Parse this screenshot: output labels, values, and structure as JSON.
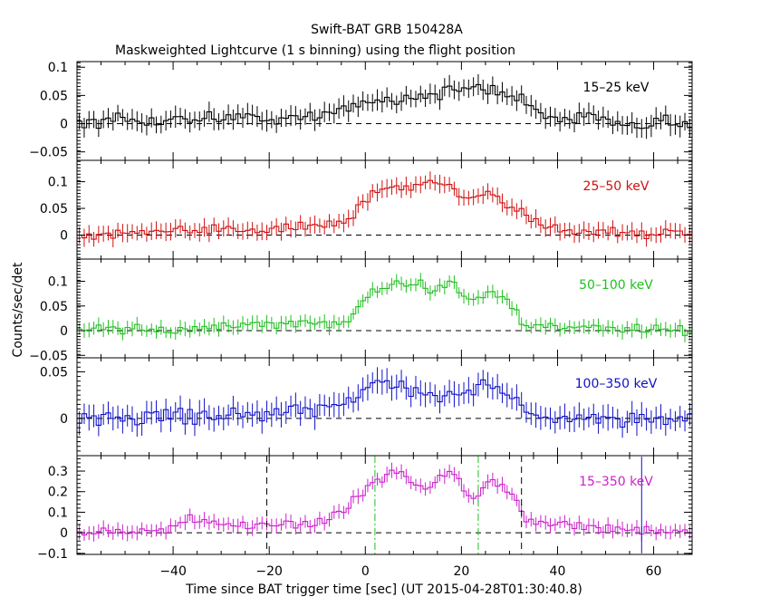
{
  "title": "Swift-BAT GRB 150428A",
  "subtitle": "Maskweighted Lightcurve (1 s binning) using the flight position",
  "ylabel": "Counts/sec/det",
  "xlabel": "Time since BAT trigger time [sec] (UT 2015-04-28T01:30:40.8)",
  "chart_data": {
    "type": "line",
    "xlim": [
      -60,
      68
    ],
    "x_ticks": [
      -40,
      -20,
      0,
      20,
      40,
      60
    ],
    "x_tick_labels": [
      "−40",
      "−20",
      "0",
      "20",
      "40",
      "60"
    ],
    "panels": [
      {
        "name": "15–25 keV",
        "color": "#000000",
        "ylim": [
          -0.065,
          0.11
        ],
        "y_ticks": [
          -0.05,
          0,
          0.05,
          0.1
        ],
        "y_tick_labels": [
          "−0.05",
          "0",
          "0.05",
          "0.1"
        ],
        "step": 0.006,
        "noise": 0.018,
        "shape": [
          [
            -60,
            0
          ],
          [
            -38,
            0.008
          ],
          [
            -28,
            0.012
          ],
          [
            -10,
            0.008
          ],
          [
            -6,
            0.025
          ],
          [
            0,
            0.04
          ],
          [
            10,
            0.045
          ],
          [
            18,
            0.06
          ],
          [
            27,
            0.06
          ],
          [
            34,
            0.035
          ],
          [
            40,
            0.01
          ],
          [
            68,
            0
          ]
        ]
      },
      {
        "name": "25–50 keV",
        "color": "#d01010",
        "ylim": [
          -0.045,
          0.14
        ],
        "y_ticks": [
          0,
          0.05,
          0.1
        ],
        "y_tick_labels": [
          "0",
          "0.05",
          "0.1"
        ],
        "step": 0.006,
        "noise": 0.016,
        "shape": [
          [
            -60,
            -0.002
          ],
          [
            -40,
            0.005
          ],
          [
            -30,
            0.01
          ],
          [
            -5,
            0.02
          ],
          [
            0,
            0.06
          ],
          [
            2,
            0.085
          ],
          [
            8,
            0.09
          ],
          [
            16,
            0.1
          ],
          [
            21,
            0.07
          ],
          [
            26,
            0.08
          ],
          [
            33,
            0.04
          ],
          [
            40,
            0.01
          ],
          [
            68,
            0
          ]
        ]
      },
      {
        "name": "50–100 keV",
        "color": "#20c020",
        "ylim": [
          -0.055,
          0.145
        ],
        "y_ticks": [
          -0.05,
          0,
          0.05,
          0.1
        ],
        "y_tick_labels": [
          "−0.05",
          "0",
          "0.05",
          "0.1"
        ],
        "step": 0.006,
        "noise": 0.014,
        "shape": [
          [
            -60,
            0.005
          ],
          [
            -40,
            0.0
          ],
          [
            -30,
            0.01
          ],
          [
            -6,
            0.015
          ],
          [
            -2,
            0.035
          ],
          [
            0,
            0.07
          ],
          [
            4,
            0.085
          ],
          [
            8,
            0.1
          ],
          [
            14,
            0.085
          ],
          [
            18,
            0.1
          ],
          [
            22,
            0.06
          ],
          [
            26,
            0.08
          ],
          [
            31,
            0.05
          ],
          [
            33,
            0.01
          ],
          [
            68,
            0.0
          ]
        ]
      },
      {
        "name": "100–350 keV",
        "color": "#1010c8",
        "ylim": [
          -0.04,
          0.065
        ],
        "y_ticks": [
          0,
          0.05
        ],
        "y_tick_labels": [
          "0",
          "0.05"
        ],
        "step": 0.005,
        "noise": 0.013,
        "shape": [
          [
            -60,
            0.0
          ],
          [
            -10,
            0.008
          ],
          [
            0,
            0.025
          ],
          [
            1,
            0.045
          ],
          [
            6,
            0.03
          ],
          [
            18,
            0.025
          ],
          [
            24,
            0.038
          ],
          [
            30,
            0.025
          ],
          [
            36,
            0.0
          ],
          [
            68,
            0.0
          ]
        ]
      },
      {
        "name": "15–350 keV",
        "color": "#cc22cc",
        "ylim": [
          -0.105,
          0.375
        ],
        "y_ticks": [
          -0.1,
          0,
          0.1,
          0.2,
          0.3
        ],
        "y_tick_labels": [
          "−0.1",
          "0",
          "0.1",
          "0.2",
          "0.3"
        ],
        "step": 0.02,
        "noise": 0.035,
        "shape": [
          [
            -60,
            0.0
          ],
          [
            -40,
            0.02
          ],
          [
            -37,
            0.07
          ],
          [
            -30,
            0.03
          ],
          [
            -10,
            0.05
          ],
          [
            -5,
            0.1
          ],
          [
            0,
            0.2
          ],
          [
            2,
            0.25
          ],
          [
            8,
            0.3
          ],
          [
            12,
            0.2
          ],
          [
            18,
            0.32
          ],
          [
            22,
            0.14
          ],
          [
            26,
            0.27
          ],
          [
            30,
            0.2
          ],
          [
            34,
            0.05
          ],
          [
            40,
            0.04
          ],
          [
            68,
            0.0
          ]
        ],
        "vlines": [
          {
            "x": -20.5,
            "color": "#000000",
            "style": "dash"
          },
          {
            "x": 2,
            "color": "#20c020",
            "style": "dashdot"
          },
          {
            "x": 23.5,
            "color": "#20c020",
            "style": "dashdot"
          },
          {
            "x": 32.5,
            "color": "#000000",
            "style": "dash"
          },
          {
            "x": 57.5,
            "color": "#1010c8",
            "style": "solid",
            "y0": -0.1,
            "y1": 0.37
          }
        ]
      }
    ]
  }
}
